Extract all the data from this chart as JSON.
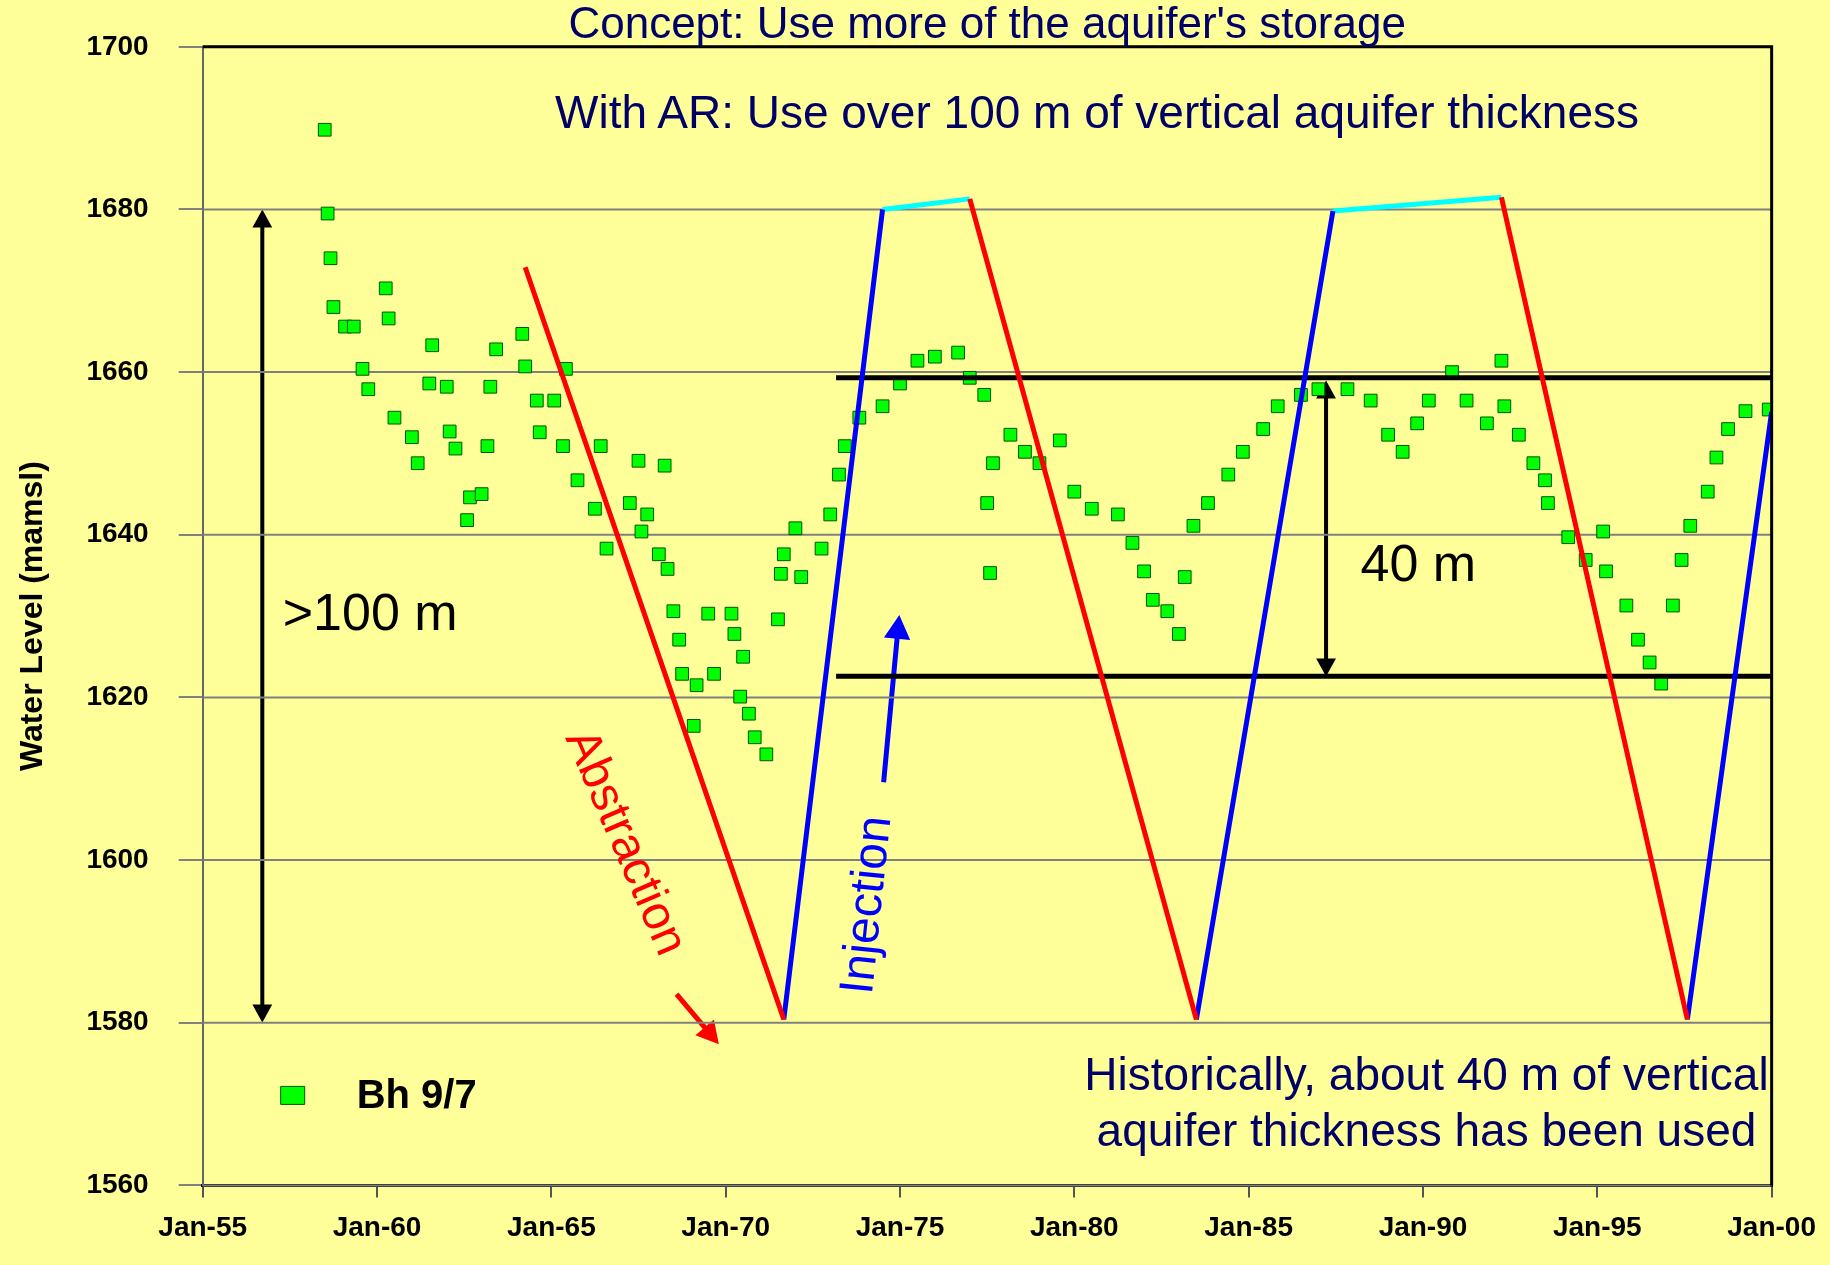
{
  "chart_data": {
    "type": "scatter",
    "title": "Concept: Use more of the aquifer's storage",
    "ylabel": "Water Level (mamsl)",
    "xlim": [
      "1955-01",
      "2000-01"
    ],
    "ylim": [
      1560,
      1700
    ],
    "xticks": [
      {
        "value": "1955-01",
        "label": "Jan-55"
      },
      {
        "value": "1960-01",
        "label": "Jan-60"
      },
      {
        "value": "1965-01",
        "label": "Jan-65"
      },
      {
        "value": "1970-01",
        "label": "Jan-70"
      },
      {
        "value": "1975-01",
        "label": "Jan-75"
      },
      {
        "value": "1980-01",
        "label": "Jan-80"
      },
      {
        "value": "1985-01",
        "label": "Jan-85"
      },
      {
        "value": "1990-01",
        "label": "Jan-90"
      },
      {
        "value": "1995-01",
        "label": "Jan-95"
      },
      {
        "value": "2000-01",
        "label": "Jan-00"
      }
    ],
    "yticks": [
      1560,
      1580,
      1600,
      1620,
      1640,
      1660,
      1680,
      1700
    ],
    "grid": "y",
    "legend": "bottom left",
    "marker": "square",
    "series": [
      {
        "name": "Bh 9/7",
        "color": "#00ff00",
        "x": [
          "1958-07",
          "1958-08",
          "1958-09",
          "1958-10",
          "1959-02",
          "1959-05",
          "1960-04",
          "1960-05",
          "1959-08",
          "1959-10",
          "1960-07",
          "1961-01",
          "1961-03",
          "1961-08",
          "1961-07",
          "1962-01",
          "1962-02",
          "1962-04",
          "1962-09",
          "1962-08",
          "1963-01",
          "1963-03",
          "1963-04",
          "1963-06",
          "1964-03",
          "1964-04",
          "1964-09",
          "1964-08",
          "1965-06",
          "1965-02",
          "1965-05",
          "1965-10",
          "1966-06",
          "1966-04",
          "1966-08",
          "1967-04",
          "1967-08",
          "1967-10",
          "1967-07",
          "1968-04",
          "1968-02",
          "1968-05",
          "1968-07",
          "1968-09",
          "1968-10",
          "1969-02",
          "1969-07",
          "1969-03",
          "1969-09",
          "1970-03",
          "1970-04",
          "1970-07",
          "1970-06",
          "1970-09",
          "1970-11",
          "1971-03",
          "1971-07",
          "1971-08",
          "1971-09",
          "1972-01",
          "1972-03",
          "1972-10",
          "1973-01",
          "1973-04",
          "1973-06",
          "1973-11",
          "1974-07",
          "1975-01",
          "1975-07",
          "1976-01",
          "1976-09",
          "1977-01",
          "1977-06",
          "1977-07",
          "1977-08",
          "1977-09",
          "1978-03",
          "1978-08",
          "1979-01",
          "1979-08",
          "1980-01",
          "1980-07",
          "1981-04",
          "1981-09",
          "1982-01",
          "1982-04",
          "1982-09",
          "1983-01",
          "1983-03",
          "1983-06",
          "1983-11",
          "1984-06",
          "1984-11",
          "1985-06",
          "1985-11",
          "1986-07",
          "1987-01",
          "1987-11",
          "1988-07",
          "1989-01",
          "1989-06",
          "1989-11",
          "1990-03",
          "1990-11",
          "1991-04",
          "1991-11",
          "1992-04",
          "1992-05",
          "1992-10",
          "1993-03",
          "1993-07",
          "1993-08",
          "1994-03",
          "1994-09",
          "1995-03",
          "1995-04",
          "1995-11",
          "1996-03",
          "1996-07",
          "1996-11",
          "1997-03",
          "1997-06",
          "1997-09",
          "1998-03",
          "1998-06",
          "1998-10",
          "1999-04",
          "1999-12"
        ],
        "values": [
          1689.8,
          1679.5,
          1674,
          1668,
          1665.6,
          1665.6,
          1670.3,
          1666.6,
          1660.4,
          1657.9,
          1654.4,
          1652,
          1648.8,
          1663.3,
          1658.6,
          1658.2,
          1652.7,
          1650.6,
          1644.6,
          1641.8,
          1645,
          1650.9,
          1658.2,
          1662.8,
          1664.7,
          1660.7,
          1652.6,
          1656.5,
          1660.4,
          1656.5,
          1650.9,
          1646.7,
          1650.9,
          1643.2,
          1638.3,
          1643.9,
          1640.4,
          1642.5,
          1649.1,
          1648.5,
          1637.6,
          1635.8,
          1630.6,
          1627.1,
          1622.9,
          1616.5,
          1630.3,
          1621.5,
          1622.9,
          1630.3,
          1627.8,
          1625,
          1620.1,
          1618,
          1615.1,
          1613,
          1629.6,
          1635.2,
          1637.6,
          1640.8,
          1634.8,
          1638.3,
          1642.5,
          1647.4,
          1650.9,
          1654.4,
          1655.8,
          1658.6,
          1661.4,
          1661.9,
          1662.4,
          1659.3,
          1657.2,
          1643.9,
          1635.3,
          1648.8,
          1652.3,
          1650.2,
          1648.8,
          1651.6,
          1645.3,
          1643.2,
          1642.5,
          1639,
          1635.5,
          1632,
          1630.6,
          1627.8,
          1634.8,
          1641.1,
          1643.9,
          1647.4,
          1650.2,
          1653,
          1655.8,
          1657.2,
          1657.9,
          1657.9,
          1656.5,
          1652.3,
          1650.2,
          1653.7,
          1656.5,
          1660,
          1656.5,
          1653.7,
          1661.4,
          1655.8,
          1652.3,
          1648.8,
          1646.7,
          1643.9,
          1639.7,
          1636.9,
          1640.4,
          1635.5,
          1631.3,
          1627.1,
          1624.3,
          1621.7,
          1631.3,
          1636.9,
          1641.1,
          1645.3,
          1649.5,
          1653,
          1655.2,
          1655.4
        ]
      },
      {
        "type": "line",
        "marker": "none",
        "color": "#ff0000",
        "x": [
          "1964-04",
          "1971-09",
          "1974-01",
          "1977-01",
          "1983-07",
          "1988-01",
          "1992-04",
          "1997-08"
        ],
        "values": [
          1672.9,
          1580.4,
          null,
          1681.3,
          1580.4,
          null,
          1681.5,
          1580.4
        ]
      },
      {
        "type": "line",
        "marker": "none",
        "color": "#0000ff",
        "x": [
          "1971-09",
          "1974-07",
          "1979-01",
          "1983-07",
          "1987-06",
          "1992-01",
          "1997-08",
          "2000-01"
        ],
        "values": [
          1580.4,
          1680,
          null,
          1580.4,
          1679.8,
          null,
          1580.4,
          1655.1
        ]
      },
      {
        "type": "line",
        "marker": "none",
        "color": "#00ffff",
        "x": [
          "1974-07",
          "1977-01",
          "1982-01",
          "1987-06",
          "1992-04"
        ],
        "values": [
          1680,
          1681.3,
          null,
          1679.8,
          1681.5
        ]
      },
      {
        "type": "line",
        "marker": "none",
        "color": "#000000",
        "x": [
          "1973-03",
          "2000-01"
        ],
        "values": [
          1659.3,
          1659.3
        ]
      },
      {
        "type": "line",
        "marker": "none",
        "color": "#000000",
        "x": [
          "1973-03",
          "2000-01"
        ],
        "values": [
          1622.6,
          1622.6
        ]
      }
    ],
    "annotations": [
      "With AR: Use over 100 m of vertical aquifer thickness",
      "Historically, about 40 m of vertical aquifer thickness has been used",
      ">100 m",
      "40 m",
      "Abstraction",
      "Injection"
    ]
  }
}
